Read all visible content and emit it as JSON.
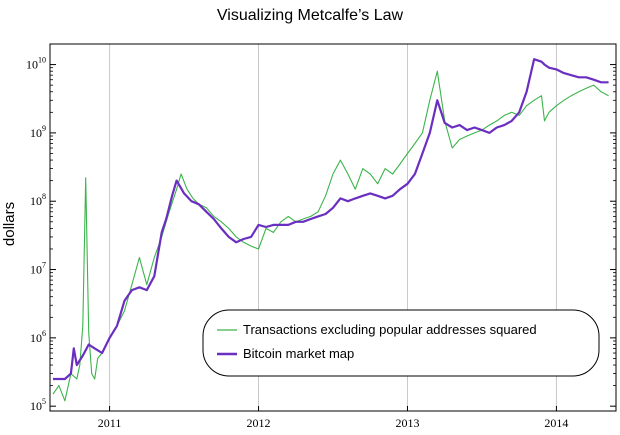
{
  "chart_data": {
    "type": "line",
    "title": "Visualizing Metcalfe’s Law",
    "xlabel": "",
    "ylabel": "dollars",
    "yscale": "log",
    "xlim": [
      2010.6,
      2014.4
    ],
    "ylim": [
      85000,
      20000000000
    ],
    "grid": "vertical",
    "legend_position": "bottom-right",
    "x_ticks": [
      {
        "value": 2011,
        "label": "2011"
      },
      {
        "value": 2012,
        "label": "2012"
      },
      {
        "value": 2013,
        "label": "2013"
      },
      {
        "value": 2014,
        "label": "2014"
      }
    ],
    "y_ticks": [
      {
        "value": 100000,
        "base": "10",
        "exp": "5"
      },
      {
        "value": 1000000,
        "base": "10",
        "exp": "6"
      },
      {
        "value": 10000000,
        "base": "10",
        "exp": "7"
      },
      {
        "value": 100000000,
        "base": "10",
        "exp": "8"
      },
      {
        "value": 1000000000,
        "base": "10",
        "exp": "9"
      },
      {
        "value": 10000000000,
        "base": "10",
        "exp": "10"
      }
    ],
    "series": [
      {
        "name": "Transactions excluding popular addresses squared",
        "color": "#3cb44b",
        "x": [
          2010.62,
          2010.66,
          2010.7,
          2010.74,
          2010.78,
          2010.8,
          2010.82,
          2010.84,
          2010.86,
          2010.88,
          2010.9,
          2010.92,
          2010.95,
          2011.0,
          2011.05,
          2011.1,
          2011.15,
          2011.2,
          2011.25,
          2011.3,
          2011.35,
          2011.4,
          2011.45,
          2011.48,
          2011.52,
          2011.56,
          2011.6,
          2011.65,
          2011.7,
          2011.75,
          2011.8,
          2011.85,
          2011.9,
          2011.95,
          2012.0,
          2012.05,
          2012.1,
          2012.15,
          2012.2,
          2012.25,
          2012.3,
          2012.35,
          2012.4,
          2012.45,
          2012.5,
          2012.55,
          2012.6,
          2012.65,
          2012.7,
          2012.75,
          2012.8,
          2012.85,
          2012.9,
          2012.95,
          2013.0,
          2013.05,
          2013.1,
          2013.15,
          2013.2,
          2013.25,
          2013.3,
          2013.35,
          2013.4,
          2013.45,
          2013.5,
          2013.55,
          2013.6,
          2013.65,
          2013.7,
          2013.75,
          2013.8,
          2013.85,
          2013.9,
          2013.92,
          2013.95,
          2014.0,
          2014.05,
          2014.1,
          2014.15,
          2014.2,
          2014.25,
          2014.3,
          2014.35
        ],
        "values": [
          150000,
          200000,
          120000,
          300000,
          250000,
          400000,
          1500000,
          220000000,
          1200000,
          300000,
          250000,
          500000,
          600000,
          1000000,
          1500000,
          2500000,
          6000000,
          15000000,
          6000000,
          15000000,
          30000000,
          70000000,
          150000000,
          250000000,
          150000000,
          110000000,
          90000000,
          80000000,
          60000000,
          50000000,
          40000000,
          30000000,
          25000000,
          22000000,
          20000000,
          40000000,
          35000000,
          50000000,
          60000000,
          50000000,
          55000000,
          60000000,
          70000000,
          120000000,
          250000000,
          400000000,
          250000000,
          150000000,
          300000000,
          250000000,
          180000000,
          300000000,
          250000000,
          350000000,
          500000000,
          700000000,
          1000000000,
          3000000000,
          8000000000,
          1500000000,
          600000000,
          800000000,
          900000000,
          1000000000,
          1100000000,
          1300000000,
          1500000000,
          1800000000,
          2000000000,
          1800000000,
          2500000000,
          3000000000,
          3500000000,
          1500000000,
          2000000000,
          2500000000,
          3000000000,
          3500000000,
          4000000000,
          4500000000,
          5000000000,
          4000000000,
          3500000000
        ]
      },
      {
        "name": "Bitcoin market map",
        "color": "#6a2fc0",
        "x": [
          2010.62,
          2010.66,
          2010.7,
          2010.74,
          2010.76,
          2010.78,
          2010.82,
          2010.86,
          2010.9,
          2010.95,
          2011.0,
          2011.05,
          2011.1,
          2011.15,
          2011.2,
          2011.25,
          2011.3,
          2011.35,
          2011.38,
          2011.42,
          2011.45,
          2011.5,
          2011.55,
          2011.6,
          2011.65,
          2011.7,
          2011.75,
          2011.8,
          2011.85,
          2011.9,
          2011.95,
          2012.0,
          2012.05,
          2012.1,
          2012.15,
          2012.2,
          2012.25,
          2012.3,
          2012.35,
          2012.4,
          2012.45,
          2012.5,
          2012.55,
          2012.6,
          2012.65,
          2012.7,
          2012.75,
          2012.8,
          2012.85,
          2012.9,
          2012.95,
          2013.0,
          2013.05,
          2013.1,
          2013.15,
          2013.2,
          2013.25,
          2013.3,
          2013.35,
          2013.4,
          2013.45,
          2013.5,
          2013.55,
          2013.6,
          2013.65,
          2013.7,
          2013.75,
          2013.8,
          2013.85,
          2013.9,
          2013.92,
          2013.95,
          2014.0,
          2014.05,
          2014.1,
          2014.15,
          2014.2,
          2014.25,
          2014.3,
          2014.35
        ],
        "values": [
          250000,
          250000,
          250000,
          300000,
          700000,
          400000,
          550000,
          800000,
          700000,
          600000,
          1000000,
          1500000,
          3500000,
          5000000,
          5500000,
          5000000,
          8000000,
          35000000,
          55000000,
          120000000,
          200000000,
          130000000,
          100000000,
          90000000,
          70000000,
          55000000,
          40000000,
          30000000,
          25000000,
          28000000,
          30000000,
          45000000,
          42000000,
          45000000,
          45000000,
          45000000,
          50000000,
          50000000,
          55000000,
          60000000,
          65000000,
          80000000,
          110000000,
          100000000,
          110000000,
          120000000,
          130000000,
          120000000,
          110000000,
          120000000,
          150000000,
          180000000,
          250000000,
          500000000,
          1000000000,
          3000000000,
          1400000000,
          1200000000,
          1300000000,
          1100000000,
          1200000000,
          1100000000,
          1000000000,
          1200000000,
          1300000000,
          1500000000,
          2000000000,
          4000000000,
          12000000000,
          11000000000,
          10000000000,
          9000000000,
          8500000000,
          7500000000,
          7000000000,
          6500000000,
          6500000000,
          6000000000,
          5500000000,
          5500000000
        ]
      }
    ]
  }
}
